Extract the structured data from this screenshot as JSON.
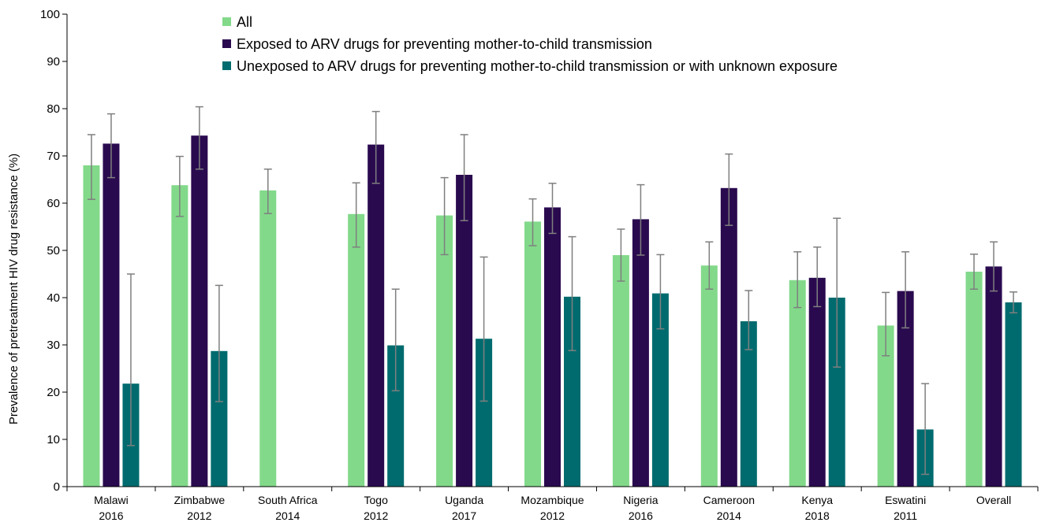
{
  "chart_data": {
    "type": "bar",
    "title": "",
    "xlabel": "",
    "ylabel": "Prevalence of pretreatment HIV drug resistance (%)",
    "ylim": [
      0,
      100
    ],
    "yticks": [
      0,
      10,
      20,
      30,
      40,
      50,
      60,
      70,
      80,
      90,
      100
    ],
    "grid": false,
    "legend_position": "top-center",
    "categories": [
      [
        "Malawi",
        "2016"
      ],
      [
        "Zimbabwe",
        "2012"
      ],
      [
        "South Africa",
        "2014"
      ],
      [
        "Togo",
        "2012"
      ],
      [
        "Uganda",
        "2017"
      ],
      [
        "Mozambique",
        "2012"
      ],
      [
        "Nigeria",
        "2016"
      ],
      [
        "Cameroon",
        "2014"
      ],
      [
        "Kenya",
        "2018"
      ],
      [
        "Eswatini",
        "2011"
      ],
      [
        "Overall",
        ""
      ]
    ],
    "series": [
      {
        "name": "All",
        "color": "#82d98a",
        "values": [
          68.0,
          63.8,
          62.7,
          57.7,
          57.4,
          56.1,
          49.0,
          46.8,
          43.7,
          34.1,
          45.5
        ],
        "err_low": [
          60.8,
          57.2,
          57.8,
          50.7,
          49.1,
          51.0,
          43.5,
          41.8,
          37.9,
          27.7,
          41.8
        ],
        "err_high": [
          74.5,
          69.9,
          67.2,
          64.3,
          65.4,
          60.9,
          54.5,
          51.8,
          49.7,
          41.1,
          49.2
        ]
      },
      {
        "name": "Exposed to ARV drugs for preventing mother-to-child transmission",
        "color": "#2a0a4f",
        "values": [
          72.6,
          74.3,
          null,
          72.4,
          66.0,
          59.1,
          56.6,
          63.2,
          44.2,
          41.4,
          46.6
        ],
        "err_low": [
          65.4,
          67.2,
          null,
          64.2,
          56.3,
          53.6,
          49.0,
          55.3,
          38.1,
          33.6,
          41.4
        ],
        "err_high": [
          78.9,
          80.4,
          null,
          79.4,
          74.5,
          64.2,
          63.9,
          70.4,
          50.7,
          49.7,
          51.8
        ]
      },
      {
        "name": "Unexposed to ARV drugs for preventing mother-to-child transmission or with unknown exposure",
        "color": "#006b6e",
        "values": [
          21.8,
          28.7,
          null,
          29.9,
          31.3,
          40.2,
          40.9,
          35.0,
          40.0,
          12.1,
          39.0
        ],
        "err_low": [
          8.7,
          18.0,
          null,
          20.3,
          18.1,
          28.8,
          33.4,
          29.0,
          25.3,
          2.6,
          36.8
        ],
        "err_high": [
          45.0,
          42.6,
          null,
          41.8,
          48.6,
          52.9,
          49.1,
          41.5,
          56.8,
          21.8,
          41.2
        ]
      }
    ]
  }
}
